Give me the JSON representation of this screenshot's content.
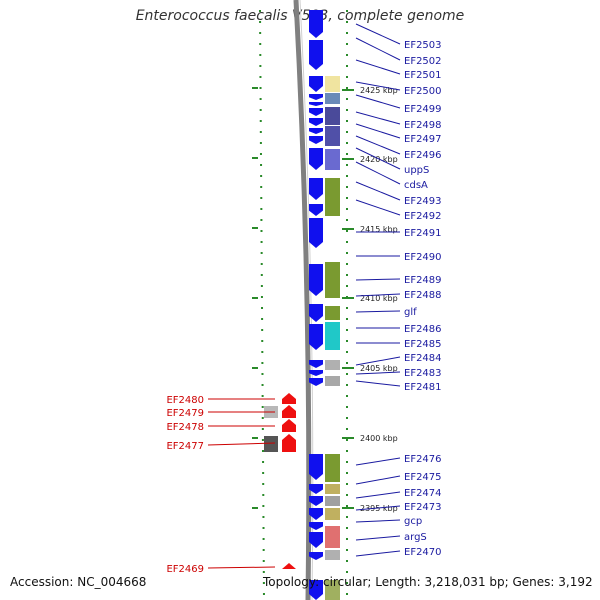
{
  "title": "Enterococcus faecalis V583, complete genome",
  "footer": {
    "accession": "Accession: NC_004668",
    "summary": "Topology: circular; Length: 3,218,031 bp; Genes: 3,192"
  },
  "colors": {
    "forward_cds": "#1010ee",
    "reverse_cds": "#ee1010",
    "label_forward": "#1a1aa0",
    "label_reverse": "#cc0000",
    "backbone": "#808080",
    "tick_marks": "#2a8a2a"
  },
  "ticks": [
    {
      "label": "2425 kbp"
    },
    {
      "label": "2420 kbp"
    },
    {
      "label": "2415 kbp"
    },
    {
      "label": "2410 kbp"
    },
    {
      "label": "2405 kbp"
    },
    {
      "label": "2400 kbp"
    },
    {
      "label": "2395 kbp"
    }
  ],
  "forward_genes": [
    {
      "name": "EF2503"
    },
    {
      "name": "EF2502"
    },
    {
      "name": "EF2501"
    },
    {
      "name": "EF2500"
    },
    {
      "name": "EF2499"
    },
    {
      "name": "EF2498"
    },
    {
      "name": "EF2497"
    },
    {
      "name": "EF2496"
    },
    {
      "name": "uppS"
    },
    {
      "name": "cdsA"
    },
    {
      "name": "EF2493"
    },
    {
      "name": "EF2492"
    },
    {
      "name": "EF2491"
    },
    {
      "name": "EF2490"
    },
    {
      "name": "EF2489"
    },
    {
      "name": "EF2488"
    },
    {
      "name": "glf"
    },
    {
      "name": "EF2486"
    },
    {
      "name": "EF2485"
    },
    {
      "name": "EF2484"
    },
    {
      "name": "EF2483"
    },
    {
      "name": "EF2481"
    },
    {
      "name": "EF2476"
    },
    {
      "name": "EF2475"
    },
    {
      "name": "EF2474"
    },
    {
      "name": "EF2473"
    },
    {
      "name": "gcp"
    },
    {
      "name": "argS"
    },
    {
      "name": "EF2470"
    }
  ],
  "reverse_genes": [
    {
      "name": "EF2480"
    },
    {
      "name": "EF2479"
    },
    {
      "name": "EF2478"
    },
    {
      "name": "EF2477"
    },
    {
      "name": "EF2469"
    }
  ]
}
